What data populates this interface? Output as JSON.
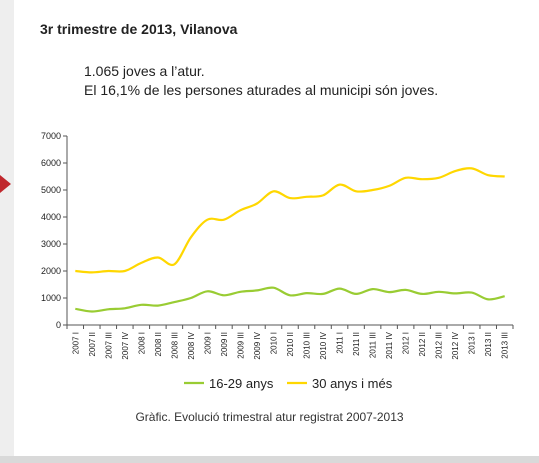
{
  "title": "3r trimestre de 2013, Vilanova",
  "subtitle_lines": [
    "1.065 joves a l’atur.",
    "El 16,1% de les persones aturades al municipi són joves."
  ],
  "caption": "Gràfic. Evolució trimestral atur registrat 2007-2013",
  "chart_data": {
    "type": "line",
    "title": "",
    "xlabel": "",
    "ylabel": "",
    "ylim": [
      0,
      7000
    ],
    "yticks": [
      0,
      1000,
      2000,
      3000,
      4000,
      5000,
      6000,
      7000
    ],
    "grid": false,
    "legend_position": "bottom",
    "categories": [
      "2007 I",
      "2007 II",
      "2007 III",
      "2007 IV",
      "2008 I",
      "2008 II",
      "2008 III",
      "2008 IV",
      "2009 I",
      "2009 II",
      "2009 III",
      "2009 IV",
      "2010 I",
      "2010 II",
      "2010 III",
      "2010 IV",
      "2011 I",
      "2011 II",
      "2011 III",
      "2011 IV",
      "2012 I",
      "2012 II",
      "2012 III",
      "2012 IV",
      "2013 I",
      "2013 II",
      "2013 III"
    ],
    "series": [
      {
        "name": "16-29 anys",
        "color": "#99cc33",
        "values": [
          600,
          500,
          580,
          620,
          750,
          720,
          850,
          1000,
          1250,
          1100,
          1230,
          1280,
          1380,
          1100,
          1180,
          1150,
          1350,
          1150,
          1330,
          1220,
          1300,
          1150,
          1230,
          1170,
          1200,
          950,
          1065
        ]
      },
      {
        "name": "30 anys i més",
        "color": "#ffd700",
        "values": [
          2000,
          1950,
          2000,
          2000,
          2300,
          2500,
          2250,
          3250,
          3900,
          3900,
          4250,
          4500,
          4950,
          4700,
          4750,
          4800,
          5200,
          4950,
          5000,
          5150,
          5450,
          5400,
          5450,
          5700,
          5800,
          5550,
          5500
        ]
      }
    ]
  }
}
